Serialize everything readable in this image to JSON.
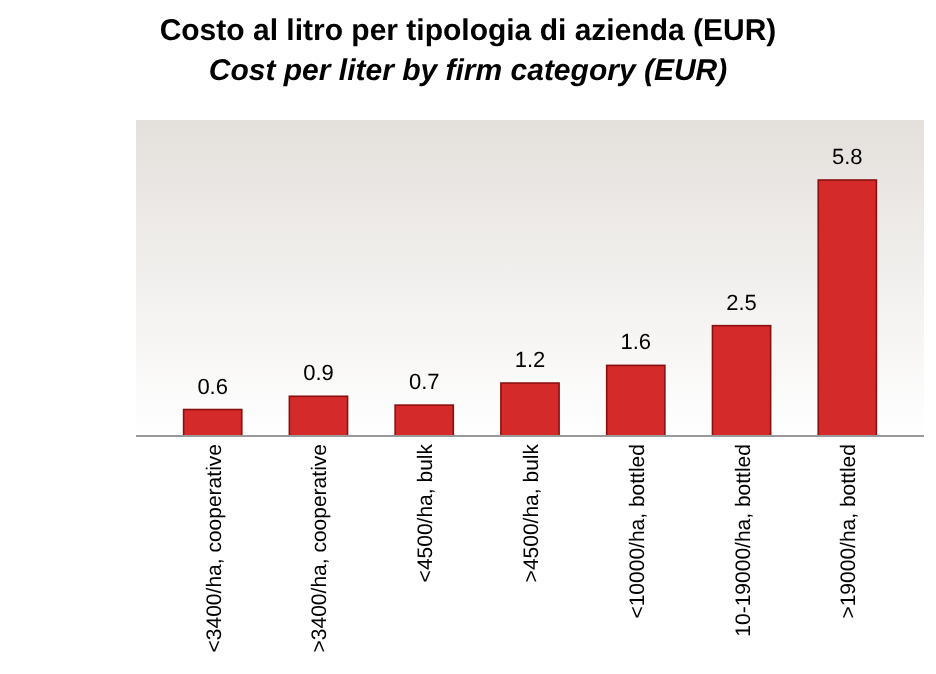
{
  "chart_data": {
    "type": "bar",
    "title": "Costo al litro per tipologia di azienda (EUR)",
    "subtitle": "Cost per liter by firm category (EUR)",
    "categories": [
      "<3400/ha, cooperative",
      ">3400/ha, cooperative",
      "<4500/ha, bulk",
      ">4500/ha, bulk",
      "<10000/ha, bottled",
      "10-19000/ha, bottled",
      ">19000/ha, bottled"
    ],
    "values": [
      0.6,
      0.9,
      0.7,
      1.2,
      1.6,
      2.5,
      5.8
    ],
    "color": "#d42a2a",
    "data_labels": true
  }
}
